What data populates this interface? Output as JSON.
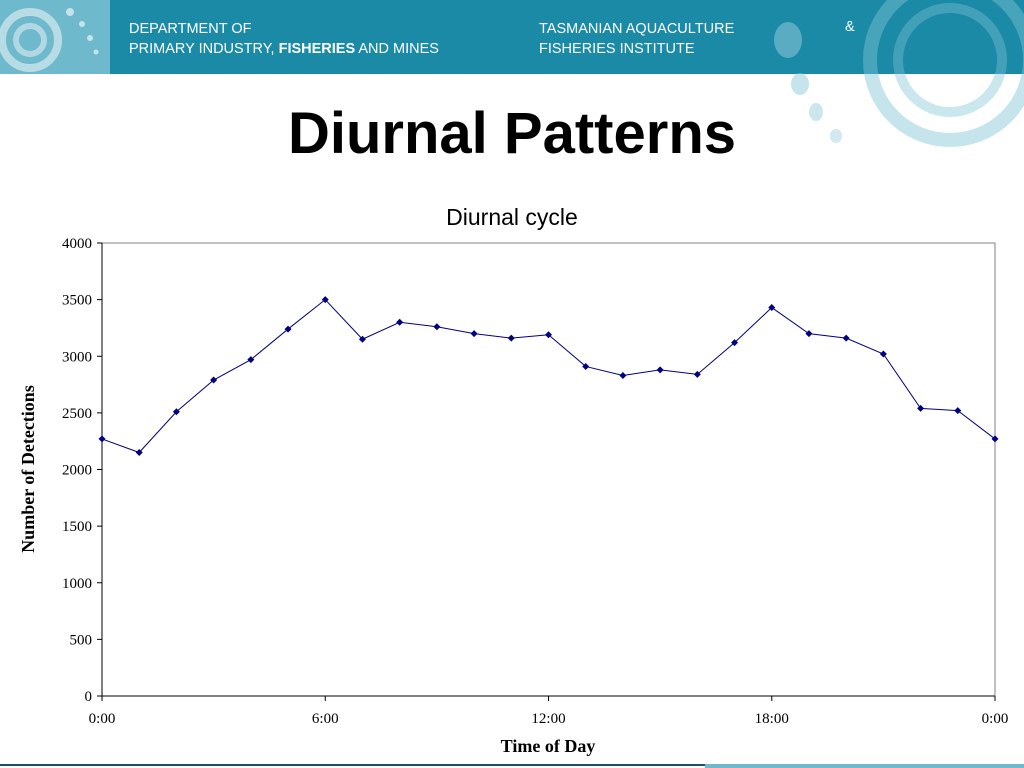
{
  "header": {
    "dept_line1": "DEPARTMENT OF",
    "dept_line2_a": "PRIMARY INDUSTRY, ",
    "dept_line2_b": "FISHERIES",
    "dept_line2_c": " AND MINES",
    "inst_line1": "TASMANIAN AQUACULTURE",
    "inst_amp": "&",
    "inst_line2": "FISHERIES INSTITUTE"
  },
  "slide_title": "Diurnal Patterns",
  "colors": {
    "header_band": "#1b8aa6",
    "series_line": "#000080",
    "axis": "#000000"
  },
  "chart_data": {
    "type": "line",
    "title": "Diurnal cycle",
    "xlabel": "Time of Day",
    "ylabel": "Number of Detections",
    "x_tick_labels": [
      "0:00",
      "6:00",
      "12:00",
      "18:00",
      "0:00"
    ],
    "y_tick_labels": [
      "0",
      "500",
      "1000",
      "1500",
      "2000",
      "2500",
      "3000",
      "3500",
      "4000"
    ],
    "xlim": [
      0,
      24
    ],
    "ylim": [
      0,
      4000
    ],
    "grid": false,
    "legend": "none",
    "series": [
      {
        "x": [
          0,
          1,
          2,
          3,
          4,
          5,
          6,
          7,
          8,
          9,
          10,
          11,
          12,
          13,
          14,
          15,
          16,
          17,
          18,
          19,
          20,
          21,
          22,
          23,
          24
        ],
        "values": [
          2270,
          2150,
          2510,
          2790,
          2970,
          3240,
          3500,
          3150,
          3300,
          3260,
          3200,
          3160,
          3190,
          2910,
          2830,
          2880,
          2840,
          3120,
          3430,
          3200,
          3160,
          3020,
          2540,
          2520,
          2270
        ],
        "marker": "diamond"
      }
    ]
  }
}
